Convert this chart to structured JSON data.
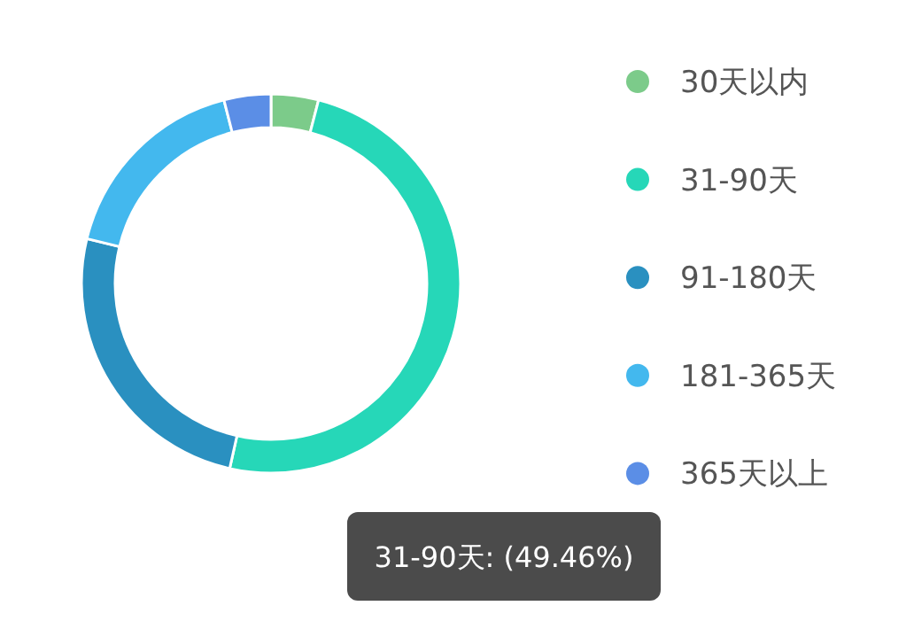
{
  "chart_data": {
    "type": "donut",
    "categories": [
      "30天以内",
      "31-90天",
      "91-180天",
      "181-365天",
      "365天以上"
    ],
    "values": [
      4.04,
      49.46,
      25.3,
      17.2,
      4.0
    ],
    "colors": [
      "#7ccb8a",
      "#26d7b8",
      "#2a90c0",
      "#43b8ee",
      "#5b8ee6"
    ],
    "legend": "right",
    "annotations": [
      "31-90天: (49.46%)"
    ]
  }
}
